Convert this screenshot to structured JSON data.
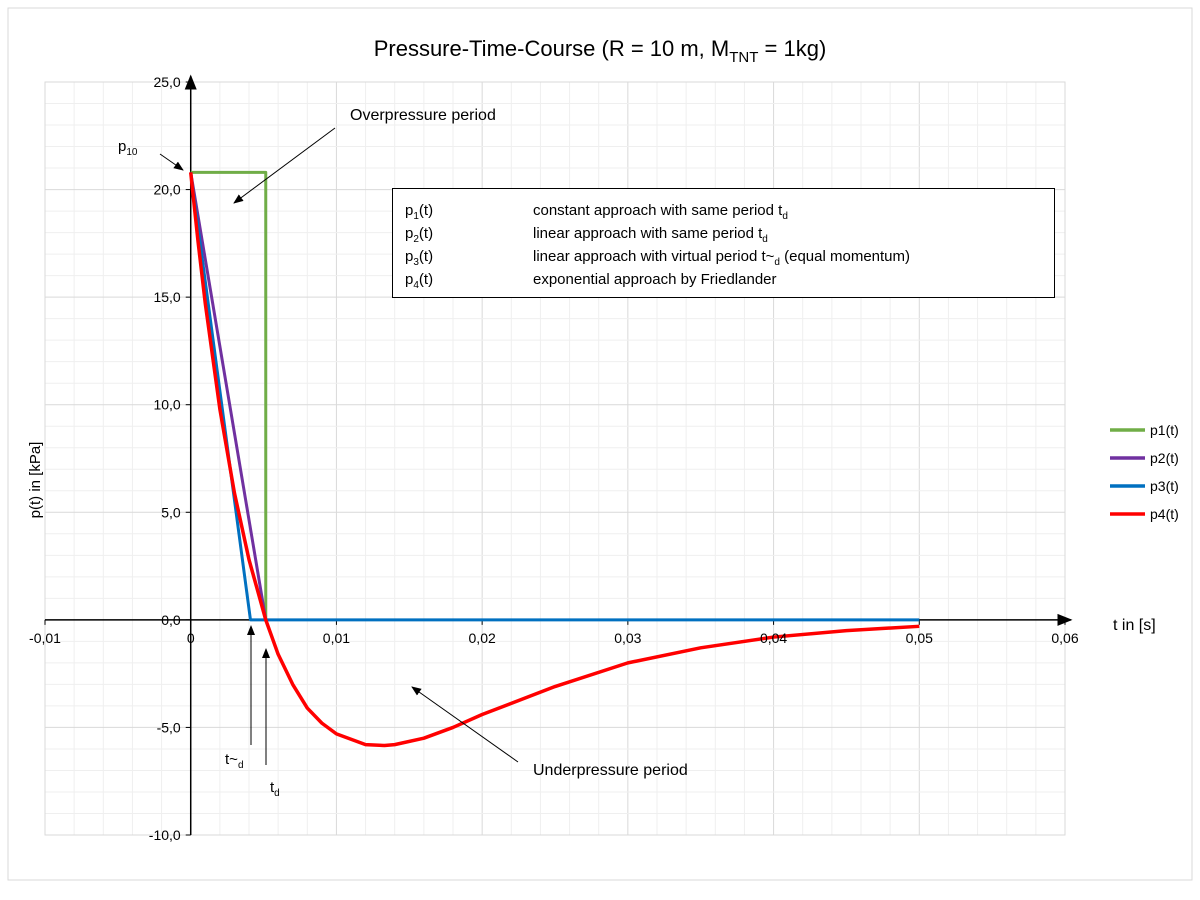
{
  "chart_data": {
    "type": "line",
    "title": {
      "main": "Pressure-Time-Course (R = 10 m, M",
      "sub": "TNT",
      "tail": " = 1kg)"
    },
    "xlabel": "t in [s]",
    "ylabel": "p(t) in [kPa]",
    "xlim": [
      -0.01,
      0.06
    ],
    "ylim": [
      -10,
      25
    ],
    "x_ticks": [
      -0.01,
      0,
      0.01,
      0.02,
      0.03,
      0.04,
      0.05,
      0.06
    ],
    "x_tick_labels": [
      "-0,01",
      "0",
      "0,01",
      "0,02",
      "0,03",
      "0,04",
      "0,05",
      "0,06"
    ],
    "y_ticks": [
      -10,
      -5,
      0,
      5,
      10,
      15,
      20,
      25
    ],
    "y_tick_labels": [
      "-10,0",
      "-5,0",
      "0,0",
      "5,0",
      "10,0",
      "15,0",
      "20,0",
      "25,0"
    ],
    "grid": {
      "major": true,
      "minor": true,
      "x_minor_step": 0.002,
      "y_minor_step": 1
    },
    "legend_placement": "right",
    "series": [
      {
        "name": "p1(t)",
        "color": "#70ad47",
        "points": [
          [
            0,
            20.8
          ],
          [
            0.00515,
            20.8
          ],
          [
            0.00515,
            0
          ]
        ]
      },
      {
        "name": "p2(t)",
        "color": "#7030a0",
        "points": [
          [
            0,
            20.8
          ],
          [
            0.00515,
            0
          ]
        ]
      },
      {
        "name": "p3(t)",
        "color": "#0070c0",
        "points": [
          [
            0,
            20.8
          ],
          [
            0.0041,
            0
          ],
          [
            0.05,
            0
          ]
        ]
      },
      {
        "name": "p4(t)",
        "color": "#ff0000",
        "points": [
          [
            0,
            20.8
          ],
          [
            0.0005,
            17.6
          ],
          [
            0.001,
            14.7
          ],
          [
            0.002,
            9.8
          ],
          [
            0.003,
            5.9
          ],
          [
            0.004,
            2.8
          ],
          [
            0.00515,
            0
          ],
          [
            0.006,
            -1.6
          ],
          [
            0.007,
            -3.0
          ],
          [
            0.008,
            -4.1
          ],
          [
            0.009,
            -4.8
          ],
          [
            0.01,
            -5.3
          ],
          [
            0.012,
            -5.8
          ],
          [
            0.0133,
            -5.84
          ],
          [
            0.014,
            -5.8
          ],
          [
            0.016,
            -5.5
          ],
          [
            0.018,
            -5.0
          ],
          [
            0.02,
            -4.4
          ],
          [
            0.025,
            -3.1
          ],
          [
            0.03,
            -2.0
          ],
          [
            0.035,
            -1.3
          ],
          [
            0.04,
            -0.8
          ],
          [
            0.045,
            -0.5
          ],
          [
            0.05,
            -0.3
          ]
        ]
      }
    ],
    "annotations": {
      "p10": {
        "main": "p",
        "sub": "10"
      },
      "overpressure": "Overpressure period",
      "underpressure": "Underpressure period",
      "td_virtual": {
        "main": "t~",
        "sub": "d"
      },
      "td": {
        "main": "t",
        "sub": "d"
      }
    },
    "description_box": [
      {
        "name": "p",
        "sub": "1",
        "tail": "(t)",
        "text": "constant approach with same period t",
        "text_sub": "d",
        "text_tail": ""
      },
      {
        "name": "p",
        "sub": "2",
        "tail": "(t)",
        "text": "linear approach with same period t",
        "text_sub": "d",
        "text_tail": ""
      },
      {
        "name": "p",
        "sub": "3",
        "tail": "(t)",
        "text": "linear approach with virtual period t~",
        "text_sub": "d",
        "text_tail": " (equal momentum)"
      },
      {
        "name": "p",
        "sub": "4",
        "tail": "(t)",
        "text": "exponential approach by Friedlander",
        "text_sub": "",
        "text_tail": ""
      }
    ]
  }
}
